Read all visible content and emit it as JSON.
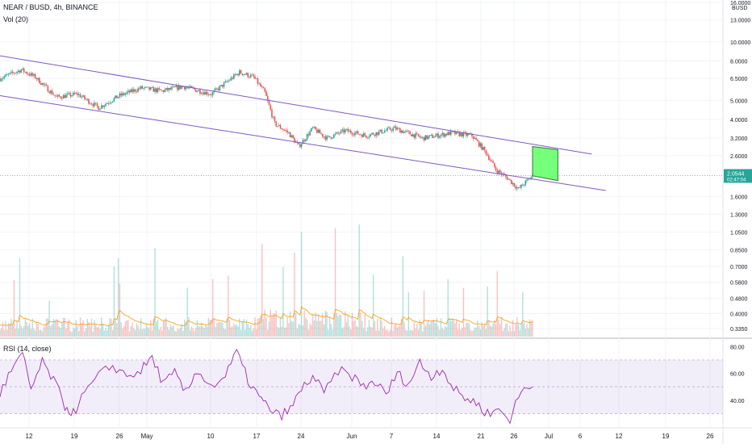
{
  "header": {
    "symbol_line": "NEAR / BUSD, 4h, BINANCE",
    "vol_label": "Vol (20)",
    "rsi_label": "RSI (14, close)"
  },
  "price_axis": {
    "currency": "BUSD",
    "ticks": [
      "16.0000",
      "13.0000",
      "10.0000",
      "8.0000",
      "6.5000",
      "5.0000",
      "4.0000",
      "3.2000",
      "2.6000",
      "1.6000",
      "1.3000",
      "1.0500",
      "0.8500",
      "0.7000",
      "0.5800",
      "0.4800",
      "0.4000",
      "0.3350"
    ],
    "tick_values": [
      16,
      13,
      10,
      8,
      6.5,
      5,
      4,
      3.2,
      2.6,
      1.6,
      1.3,
      1.05,
      0.85,
      0.7,
      0.58,
      0.48,
      0.4,
      0.335
    ],
    "current_price": "2.0544",
    "countdown": "02:47:04",
    "current_color": "#26a69a"
  },
  "rsi_axis": {
    "ticks": [
      "80.00",
      "60.00",
      "40.00"
    ],
    "tick_values": [
      80,
      60,
      40
    ],
    "band_upper": 70,
    "band_lower": 30
  },
  "time_axis": {
    "ticks": [
      "12",
      "19",
      "26",
      "May",
      "10",
      "17",
      "24",
      "Jun",
      "7",
      "14",
      "21",
      "26",
      "Jul",
      "6",
      "12",
      "19",
      "26"
    ]
  },
  "colors": {
    "up": "#26a69a",
    "down": "#ef5350",
    "channel": "#7e57c2",
    "rsi_line": "#9c27b0",
    "rsi_band": "#9575cd",
    "vol_ma": "#ff9800",
    "target_box": "#76ff7a"
  },
  "chart_data": [
    {
      "type": "candlestick",
      "log_scale": true,
      "xlabel": "",
      "ylabel": "",
      "price_path": [
        [
          0,
          6.5
        ],
        [
          15,
          7.2
        ],
        [
          25,
          6.6
        ],
        [
          40,
          5.2
        ],
        [
          55,
          5.4
        ],
        [
          70,
          4.6
        ],
        [
          85,
          5.3
        ],
        [
          100,
          5.8
        ],
        [
          115,
          5.6
        ],
        [
          130,
          5.9
        ],
        [
          150,
          5.4
        ],
        [
          170,
          7.0
        ],
        [
          180,
          6.6
        ],
        [
          188,
          5.5
        ],
        [
          195,
          3.8
        ],
        [
          205,
          3.4
        ],
        [
          212,
          2.9
        ],
        [
          222,
          3.6
        ],
        [
          232,
          3.2
        ],
        [
          245,
          3.5
        ],
        [
          260,
          3.3
        ],
        [
          280,
          3.6
        ],
        [
          300,
          3.2
        ],
        [
          320,
          3.4
        ],
        [
          335,
          3.3
        ],
        [
          345,
          2.7
        ],
        [
          352,
          2.2
        ],
        [
          360,
          2.0
        ],
        [
          368,
          1.75
        ],
        [
          378,
          2.05
        ]
      ],
      "channel": {
        "upper": [
          [
            0,
            8.5
          ],
          [
            420,
            2.65
          ]
        ],
        "lower": [
          [
            0,
            5.3
          ],
          [
            430,
            1.72
          ]
        ]
      },
      "target_box": {
        "x_from": 378,
        "x_to": 396,
        "y_low": 2.05,
        "y_high": 2.9
      }
    },
    {
      "type": "bar",
      "series": [
        {
          "name": "",
          "values": []
        }
      ]
    },
    {
      "type": "line",
      "ylim": [
        20,
        85
      ],
      "rsi_path": [
        [
          0,
          45
        ],
        [
          8,
          62
        ],
        [
          16,
          74
        ],
        [
          22,
          48
        ],
        [
          30,
          68
        ],
        [
          38,
          55
        ],
        [
          46,
          36
        ],
        [
          52,
          30
        ],
        [
          60,
          45
        ],
        [
          70,
          58
        ],
        [
          80,
          66
        ],
        [
          90,
          58
        ],
        [
          100,
          62
        ],
        [
          108,
          72
        ],
        [
          116,
          52
        ],
        [
          124,
          60
        ],
        [
          132,
          45
        ],
        [
          140,
          63
        ],
        [
          150,
          50
        ],
        [
          160,
          58
        ],
        [
          168,
          76
        ],
        [
          176,
          55
        ],
        [
          184,
          42
        ],
        [
          190,
          35
        ],
        [
          198,
          28
        ],
        [
          206,
          33
        ],
        [
          214,
          48
        ],
        [
          222,
          58
        ],
        [
          230,
          45
        ],
        [
          240,
          62
        ],
        [
          250,
          58
        ],
        [
          258,
          50
        ],
        [
          266,
          54
        ],
        [
          274,
          44
        ],
        [
          282,
          60
        ],
        [
          290,
          52
        ],
        [
          298,
          68
        ],
        [
          306,
          58
        ],
        [
          314,
          64
        ],
        [
          322,
          48
        ],
        [
          330,
          42
        ],
        [
          338,
          38
        ],
        [
          346,
          30
        ],
        [
          354,
          33
        ],
        [
          362,
          26
        ],
        [
          370,
          47
        ],
        [
          378,
          50
        ]
      ]
    }
  ]
}
